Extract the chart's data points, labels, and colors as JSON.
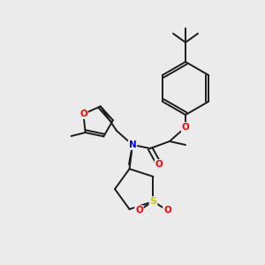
{
  "bg_color": "#ebebeb",
  "bond_color": "#1a1a1a",
  "atom_colors": {
    "O": "#ff0000",
    "N": "#0000ff",
    "S": "#cccc00",
    "C": "#1a1a1a"
  },
  "figsize": [
    3.0,
    3.0
  ],
  "dpi": 100
}
